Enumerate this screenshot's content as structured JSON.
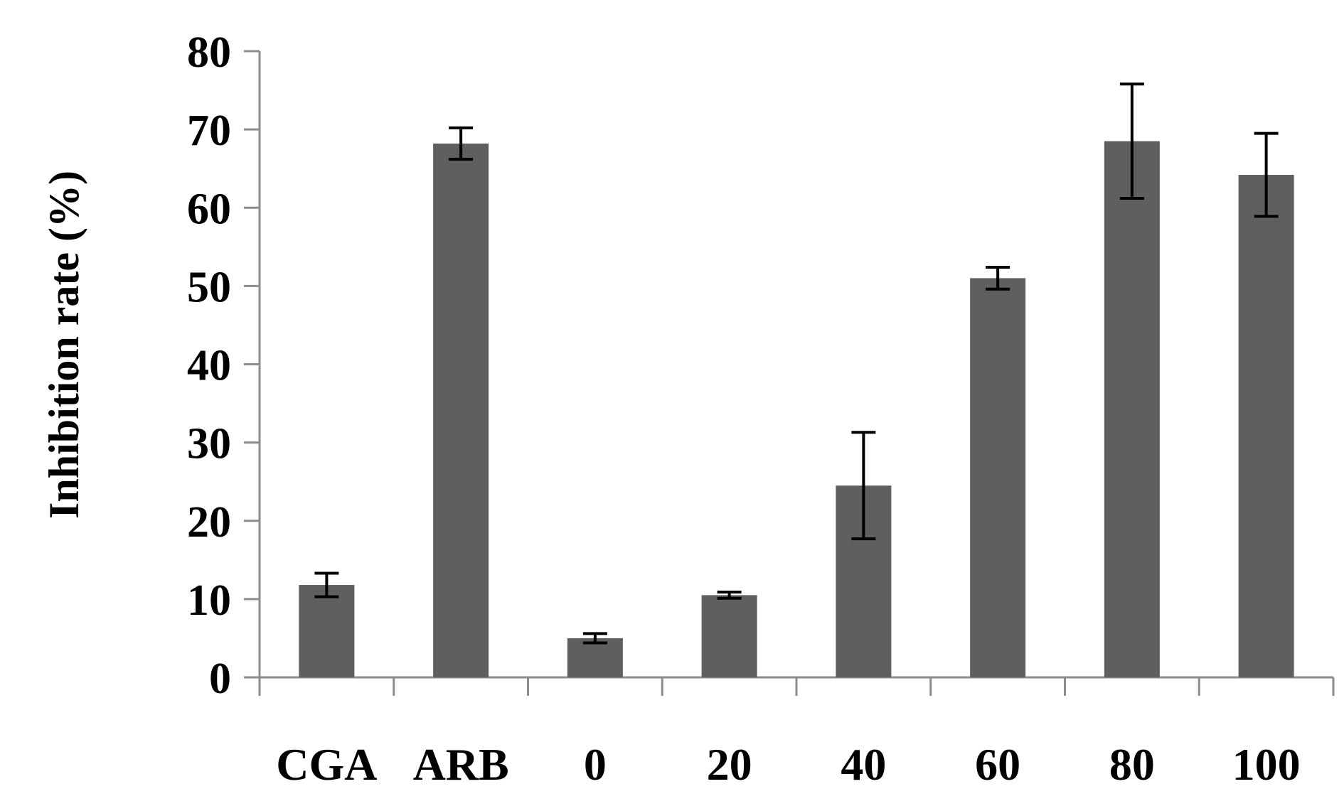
{
  "chart_data": {
    "type": "bar",
    "title": "",
    "xlabel": "",
    "ylabel": "Inhibition rate (%)",
    "categories": [
      "CGA",
      "ARB",
      "0",
      "20",
      "40",
      "60",
      "80",
      "100"
    ],
    "series": [
      {
        "values": [
          11.8,
          68.2,
          5.0,
          10.5,
          24.5,
          51.0,
          68.5,
          64.2
        ],
        "errors": [
          1.5,
          2.0,
          0.6,
          0.4,
          6.8,
          1.4,
          7.3,
          5.3
        ]
      }
    ],
    "ylim": [
      0,
      80
    ],
    "yticks": [
      "0",
      "10",
      "20",
      "30",
      "40",
      "50",
      "60",
      "70",
      "80"
    ],
    "grid": false,
    "legend": "none",
    "colors": {
      "bar": "#5f5f5f",
      "axis": "#8c8c8c",
      "error_bar": "#000000",
      "text": "#000000"
    }
  }
}
